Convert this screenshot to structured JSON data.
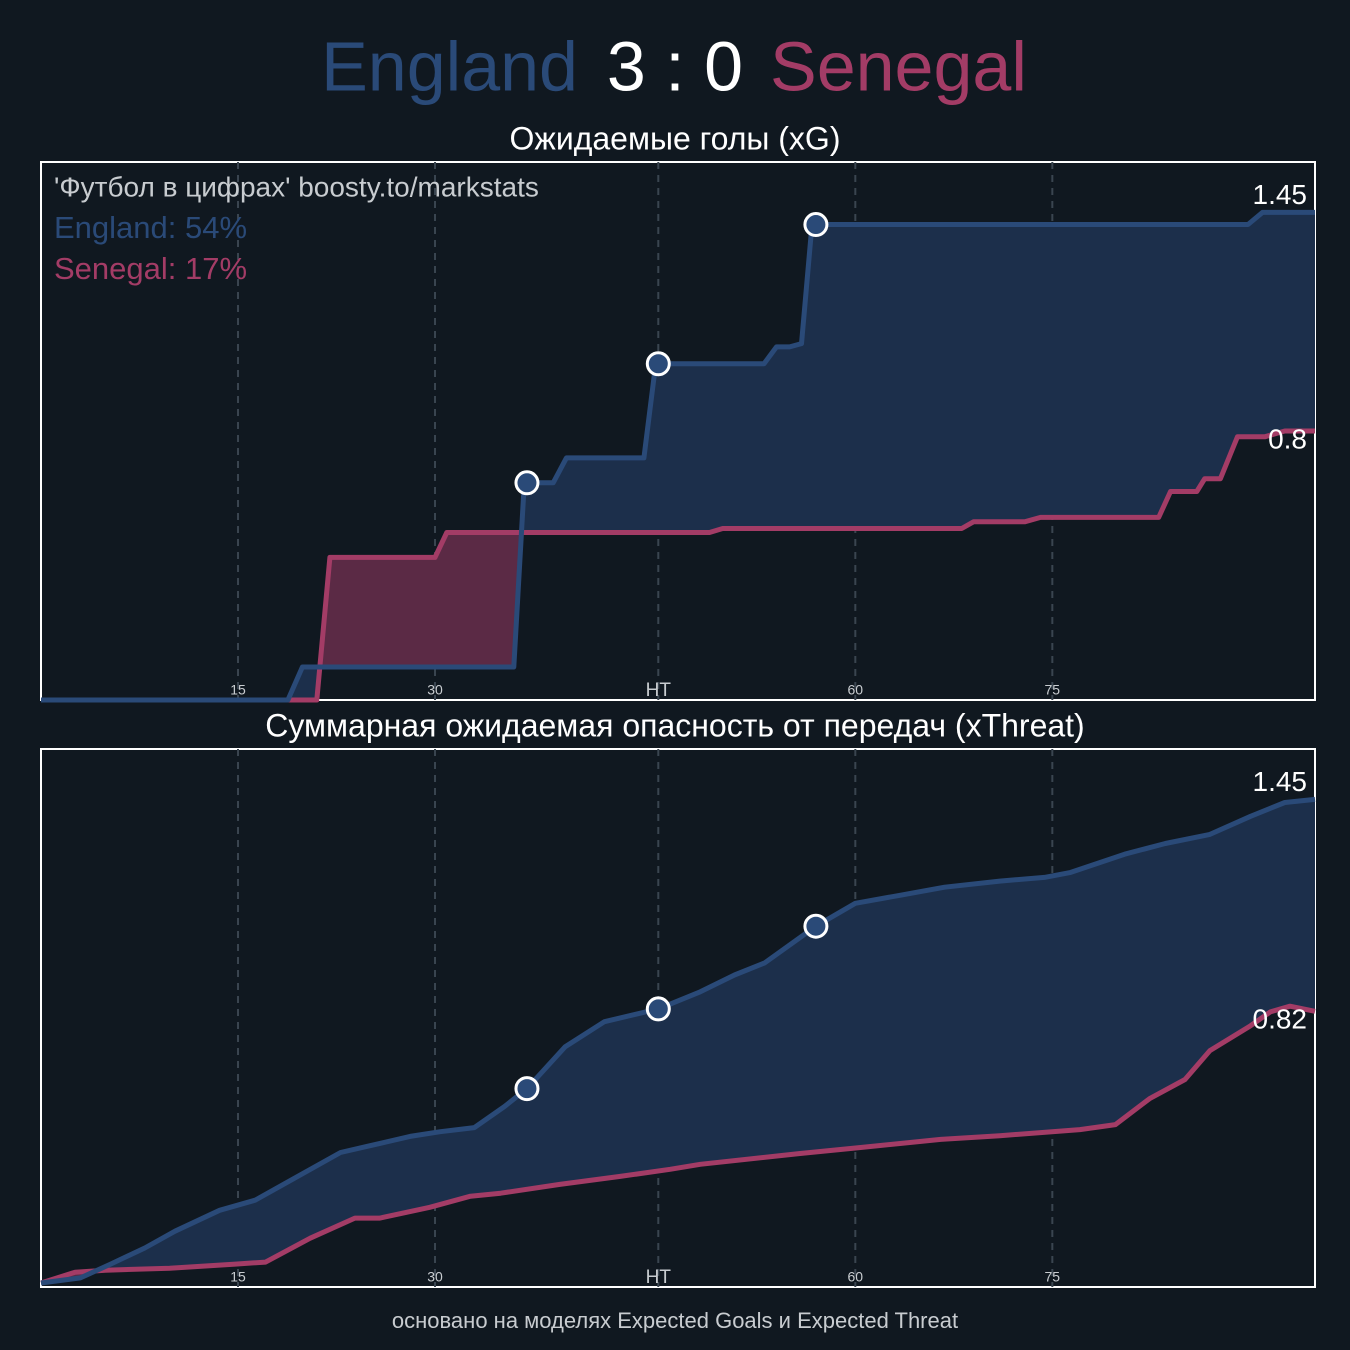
{
  "header": {
    "home": "England",
    "score": "3 : 0",
    "away": "Senegal"
  },
  "footer": "основано на моделях Expected Goals и Expected Threat",
  "chart_data": [
    {
      "type": "line",
      "title": "Ожидаемые голы (xG)",
      "annotations": [
        "'Футбол в цифрах' boosty.to/markstats",
        "England: 54%",
        "Senegal: 17%"
      ],
      "xlim": [
        0,
        97
      ],
      "ylim": [
        0,
        1.6
      ],
      "xticks": [
        15,
        30,
        {
          "value": 47,
          "label": "HT"
        },
        {
          "value": 62,
          "label": "60"
        },
        {
          "value": 77,
          "label": "75"
        }
      ],
      "grid": true,
      "series": [
        {
          "name": "England",
          "color": "#2a4a78",
          "x": [
            0,
            18.8,
            19.9,
            36.0,
            36.8,
            39.0,
            40.0,
            45.9,
            46.8,
            55.05,
            56.0,
            57.0,
            57.9,
            58.7,
            91.9,
            93.0,
            97
          ],
          "values": [
            0,
            0,
            0.098,
            0.098,
            0.646,
            0.646,
            0.72,
            0.72,
            1.0,
            1.0,
            1.05,
            1.05,
            1.06,
            1.414,
            1.414,
            1.45,
            1.45
          ]
        },
        {
          "name": "Senegal",
          "color": "#a33c66",
          "x": [
            0,
            21.0,
            22.0,
            30.0,
            30.9,
            50.9,
            51.9,
            70.1,
            71.0,
            74.9,
            76.1,
            85.1,
            86.0,
            88.0,
            88.6,
            89.8,
            91.1,
            93.2,
            94.7,
            97
          ],
          "values": [
            0,
            0,
            0.424,
            0.424,
            0.498,
            0.498,
            0.51,
            0.51,
            0.53,
            0.53,
            0.543,
            0.543,
            0.62,
            0.62,
            0.658,
            0.658,
            0.783,
            0.783,
            0.8,
            0.8
          ]
        }
      ],
      "goals": {
        "x": [
          37.0,
          47.0,
          59.0
        ],
        "values": [
          0.646,
          1.0,
          1.414
        ]
      }
    },
    {
      "type": "line",
      "title": "Суммарная ожидаемая опасность от передач (xThreat)",
      "xlim": [
        0,
        97
      ],
      "ylim": [
        0,
        1.6
      ],
      "xticks": [
        15,
        30,
        {
          "value": 47,
          "label": "HT"
        },
        {
          "value": 62,
          "label": "60"
        },
        {
          "value": 77,
          "label": "75"
        }
      ],
      "grid": true,
      "series": [
        {
          "name": "England",
          "color": "#2a4a78",
          "x": [
            0,
            3.0,
            5.3,
            7.9,
            10.2,
            13.6,
            16.3,
            19.0,
            22.8,
            25.8,
            28.1,
            30.4,
            33.0,
            35.3,
            37.0,
            39.9,
            42.9,
            47.0,
            50.2,
            52.8,
            55.1,
            59.0,
            62.0,
            65.4,
            68.8,
            73.0,
            76.4,
            78.4,
            82.5,
            85.6,
            89.0,
            92.1,
            94.7,
            97
          ],
          "values": [
            0.012,
            0.027,
            0.068,
            0.116,
            0.166,
            0.228,
            0.258,
            0.317,
            0.4,
            0.427,
            0.448,
            0.462,
            0.474,
            0.537,
            0.59,
            0.714,
            0.789,
            0.827,
            0.878,
            0.928,
            0.964,
            1.073,
            1.141,
            1.165,
            1.189,
            1.207,
            1.218,
            1.233,
            1.287,
            1.319,
            1.346,
            1.4,
            1.441,
            1.45
          ]
        },
        {
          "name": "Senegal",
          "color": "#a33c66",
          "x": [
            0,
            2.6,
            4.9,
            9.8,
            14.8,
            17.1,
            20.5,
            23.9,
            25.8,
            29.6,
            32.7,
            35.0,
            39.5,
            44.1,
            47.9,
            50.2,
            57.8,
            62.4,
            68.5,
            73.0,
            79.1,
            81.8,
            84.4,
            87.1,
            89.0,
            92.1,
            93.6,
            95.1,
            97
          ],
          "values": [
            0.012,
            0.044,
            0.05,
            0.056,
            0.068,
            0.074,
            0.145,
            0.205,
            0.205,
            0.237,
            0.27,
            0.279,
            0.305,
            0.329,
            0.35,
            0.365,
            0.397,
            0.415,
            0.439,
            0.45,
            0.468,
            0.483,
            0.56,
            0.617,
            0.703,
            0.777,
            0.818,
            0.835,
            0.82
          ]
        }
      ],
      "goals": {
        "x": [
          37.0,
          47.0,
          59.0
        ],
        "values": [
          0.59,
          0.827,
          1.073
        ]
      }
    }
  ]
}
